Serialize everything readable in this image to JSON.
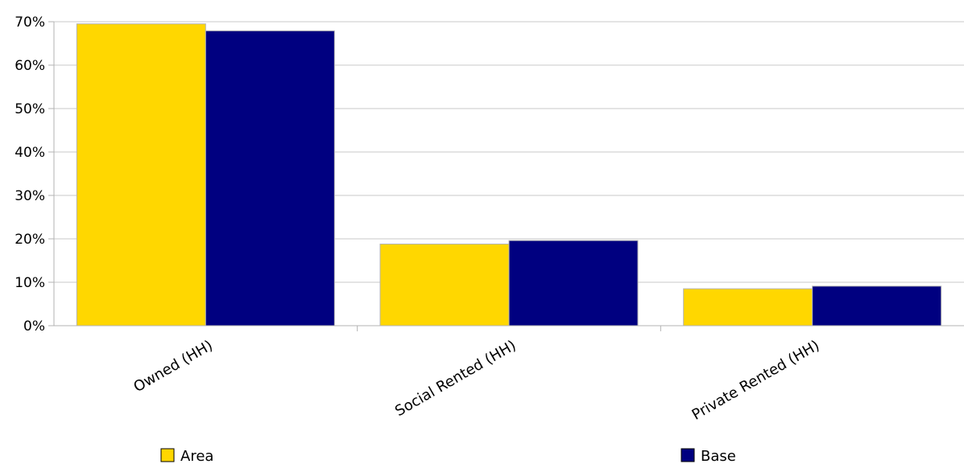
{
  "chart_data": {
    "type": "bar",
    "categories": [
      "Owned (HH)",
      "Social Rented (HH)",
      "Private Rented (HH)"
    ],
    "series": [
      {
        "name": "Area",
        "values": [
          69.5,
          18.8,
          8.5
        ],
        "color": "#ffd700"
      },
      {
        "name": "Base",
        "values": [
          67.9,
          19.6,
          9.1
        ],
        "color": "#000080"
      }
    ],
    "y_ticks": [
      "0%",
      "10%",
      "20%",
      "30%",
      "40%",
      "50%",
      "60%",
      "70%"
    ],
    "ylim": [
      0,
      70
    ],
    "grid": true,
    "legend_position": "bottom",
    "title": "",
    "xlabel": "",
    "ylabel": ""
  }
}
